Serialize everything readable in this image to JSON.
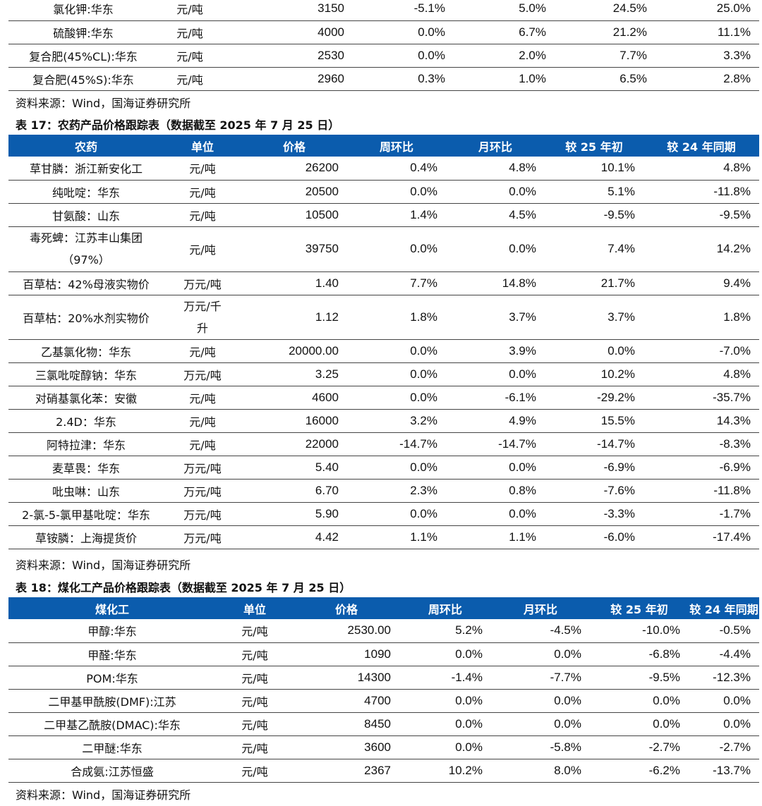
{
  "table_top": {
    "rows": [
      {
        "name": "氯化钾:华东",
        "unit": "元/吨",
        "price": "3150",
        "wow": "-5.1%",
        "mom": "5.0%",
        "ytd": "24.5%",
        "yoy": "25.0%"
      },
      {
        "name": "硫酸钾:华东",
        "unit": "元/吨",
        "price": "4000",
        "wow": "0.0%",
        "mom": "6.7%",
        "ytd": "21.2%",
        "yoy": "11.1%"
      },
      {
        "name": "复合肥(45%CL):华东",
        "unit": "元/吨",
        "price": "2530",
        "wow": "0.0%",
        "mom": "2.0%",
        "ytd": "7.7%",
        "yoy": "3.3%"
      },
      {
        "name": "复合肥(45%S):华东",
        "unit": "元/吨",
        "price": "2960",
        "wow": "0.3%",
        "mom": "1.0%",
        "ytd": "6.5%",
        "yoy": "2.8%"
      }
    ]
  },
  "source1": "资料来源：Wind，国海证券研究所",
  "table17": {
    "title": "表 17：农药产品价格跟踪表（数据截至 2025 年 7 月 25 日）",
    "headers": [
      "农药",
      "单位",
      "价格",
      "周环比",
      "月环比",
      "较 25 年初",
      "较 24 年同期"
    ],
    "rows": [
      {
        "name": "草甘膦：浙江新安化工",
        "unit": "元/吨",
        "price": "26200",
        "wow": "0.4%",
        "mom": "4.8%",
        "ytd": "10.1%",
        "yoy": "4.8%"
      },
      {
        "name": "纯吡啶：华东",
        "unit": "元/吨",
        "price": "20500",
        "wow": "0.0%",
        "mom": "0.0%",
        "ytd": "5.1%",
        "yoy": "-11.8%"
      },
      {
        "name": "甘氨酸：山东",
        "unit": "元/吨",
        "price": "10500",
        "wow": "1.4%",
        "mom": "4.5%",
        "ytd": "-9.5%",
        "yoy": "-9.5%"
      },
      {
        "name_l1": "毒死蜱：江苏丰山集团",
        "name_l2": "（97%）",
        "unit": "元/吨",
        "price": "39750",
        "wow": "0.0%",
        "mom": "0.0%",
        "ytd": "7.4%",
        "yoy": "14.2%"
      },
      {
        "name": "百草枯：42%母液实物价",
        "unit": "万元/吨",
        "price": "1.40",
        "wow": "7.7%",
        "mom": "14.8%",
        "ytd": "21.7%",
        "yoy": "9.4%"
      },
      {
        "name": "百草枯：20%水剂实物价",
        "unit_l1": "万元/千",
        "unit_l2": "升",
        "price": "1.12",
        "wow": "1.8%",
        "mom": "3.7%",
        "ytd": "3.7%",
        "yoy": "1.8%"
      },
      {
        "name": "乙基氯化物：华东",
        "unit": "元/吨",
        "price": "20000.00",
        "wow": "0.0%",
        "mom": "3.9%",
        "ytd": "0.0%",
        "yoy": "-7.0%"
      },
      {
        "name": "三氯吡啶醇钠：华东",
        "unit": "万元/吨",
        "price": "3.25",
        "wow": "0.0%",
        "mom": "0.0%",
        "ytd": "10.2%",
        "yoy": "4.8%"
      },
      {
        "name": "对硝基氯化苯：安徽",
        "unit": "元/吨",
        "price": "4600",
        "wow": "0.0%",
        "mom": "-6.1%",
        "ytd": "-29.2%",
        "yoy": "-35.7%"
      },
      {
        "name": "2.4D：华东",
        "unit": "元/吨",
        "price": "16000",
        "wow": "3.2%",
        "mom": "4.9%",
        "ytd": "15.5%",
        "yoy": "14.3%"
      },
      {
        "name": "阿特拉津：华东",
        "unit": "元/吨",
        "price": "22000",
        "wow": "-14.7%",
        "mom": "-14.7%",
        "ytd": "-14.7%",
        "yoy": "-8.3%"
      },
      {
        "name": "麦草畏：华东",
        "unit": "万元/吨",
        "price": "5.40",
        "wow": "0.0%",
        "mom": "0.0%",
        "ytd": "-6.9%",
        "yoy": "-6.9%"
      },
      {
        "name": "吡虫啉：山东",
        "unit": "万元/吨",
        "price": "6.70",
        "wow": "2.3%",
        "mom": "0.8%",
        "ytd": "-7.6%",
        "yoy": "-11.8%"
      },
      {
        "name": "2-氯-5-氯甲基吡啶：华东",
        "unit": "万元/吨",
        "price": "5.90",
        "wow": "0.0%",
        "mom": "0.0%",
        "ytd": "-3.3%",
        "yoy": "-1.7%"
      },
      {
        "name": "草铵膦：上海提货价",
        "unit": "万元/吨",
        "price": "4.42",
        "wow": "1.1%",
        "mom": "1.1%",
        "ytd": "-6.0%",
        "yoy": "-17.4%"
      }
    ]
  },
  "source2": "资料来源：Wind，国海证券研究所",
  "table18": {
    "title": "表 18：煤化工产品价格跟踪表（数据截至 2025 年 7 月 25 日）",
    "headers": [
      "煤化工",
      "单位",
      "价格",
      "周环比",
      "月环比",
      "较 25 年初",
      "较 24 年同期"
    ],
    "rows": [
      {
        "name": "甲醇:华东",
        "unit": "元/吨",
        "price": "2530.00",
        "wow": "5.2%",
        "mom": "-4.5%",
        "ytd": "-10.0%",
        "yoy": "-0.5%"
      },
      {
        "name": "甲醛:华东",
        "unit": "元/吨",
        "price": "1090",
        "wow": "0.0%",
        "mom": "0.0%",
        "ytd": "-6.8%",
        "yoy": "-4.4%"
      },
      {
        "name": "POM:华东",
        "unit": "元/吨",
        "price": "14300",
        "wow": "-1.4%",
        "mom": "-7.7%",
        "ytd": "-9.5%",
        "yoy": "-12.3%"
      },
      {
        "name": "二甲基甲酰胺(DMF):江苏",
        "unit": "元/吨",
        "price": "4700",
        "wow": "0.0%",
        "mom": "0.0%",
        "ytd": "0.0%",
        "yoy": "0.0%"
      },
      {
        "name": "二甲基乙酰胺(DMAC):华东",
        "unit": "元/吨",
        "price": "8450",
        "wow": "0.0%",
        "mom": "0.0%",
        "ytd": "0.0%",
        "yoy": "0.0%"
      },
      {
        "name": "二甲醚:华东",
        "unit": "元/吨",
        "price": "3600",
        "wow": "0.0%",
        "mom": "-5.8%",
        "ytd": "-2.7%",
        "yoy": "-2.7%"
      },
      {
        "name": "合成氨:江苏恒盛",
        "unit": "元/吨",
        "price": "2367",
        "wow": "10.2%",
        "mom": "8.0%",
        "ytd": "-6.2%",
        "yoy": "-13.7%"
      }
    ]
  },
  "source3": "资料来源：Wind，国海证券研究所"
}
